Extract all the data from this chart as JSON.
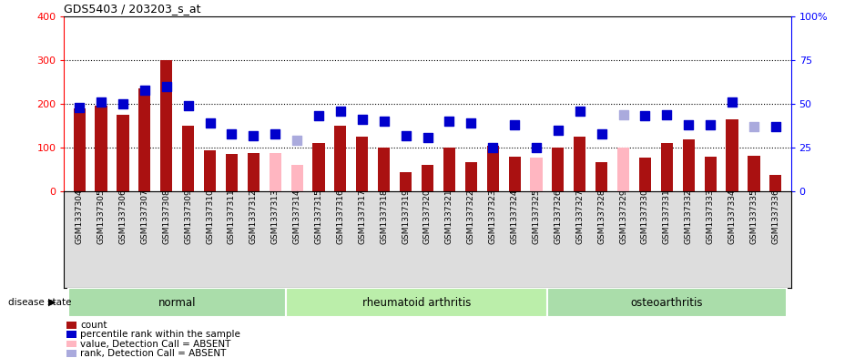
{
  "title": "GDS5403 / 203203_s_at",
  "samples": [
    "GSM1337304",
    "GSM1337305",
    "GSM1337306",
    "GSM1337307",
    "GSM1337308",
    "GSM1337309",
    "GSM1337310",
    "GSM1337311",
    "GSM1337312",
    "GSM1337313",
    "GSM1337314",
    "GSM1337315",
    "GSM1337316",
    "GSM1337317",
    "GSM1337318",
    "GSM1337319",
    "GSM1337320",
    "GSM1337321",
    "GSM1337322",
    "GSM1337323",
    "GSM1337324",
    "GSM1337325",
    "GSM1337326",
    "GSM1337327",
    "GSM1337328",
    "GSM1337329",
    "GSM1337330",
    "GSM1337331",
    "GSM1337332",
    "GSM1337333",
    "GSM1337334",
    "GSM1337335",
    "GSM1337336"
  ],
  "count_values": [
    190,
    195,
    175,
    235,
    300,
    150,
    95,
    85,
    88,
    88,
    60,
    110,
    150,
    125,
    100,
    45,
    60,
    100,
    68,
    105,
    80,
    78,
    100,
    125,
    68,
    100,
    78,
    110,
    118,
    80,
    165,
    82,
    38
  ],
  "count_absent": [
    false,
    false,
    false,
    false,
    false,
    false,
    false,
    false,
    false,
    true,
    true,
    false,
    false,
    false,
    false,
    false,
    false,
    false,
    false,
    false,
    false,
    true,
    false,
    false,
    false,
    true,
    false,
    false,
    false,
    false,
    false,
    false,
    false
  ],
  "percentile_values": [
    48,
    51,
    50,
    58,
    60,
    49,
    39,
    33,
    32,
    33,
    29,
    43,
    46,
    41,
    40,
    32,
    31,
    40,
    39,
    25,
    38,
    25,
    35,
    46,
    33,
    44,
    43,
    44,
    38,
    38,
    51,
    37,
    37
  ],
  "percentile_absent": [
    false,
    false,
    false,
    false,
    false,
    false,
    false,
    false,
    false,
    false,
    true,
    false,
    false,
    false,
    false,
    false,
    false,
    false,
    false,
    false,
    false,
    false,
    false,
    false,
    false,
    true,
    false,
    false,
    false,
    false,
    false,
    true,
    false
  ],
  "groups": [
    {
      "label": "normal",
      "start": 0,
      "end": 10
    },
    {
      "label": "rheumatoid arthritis",
      "start": 10,
      "end": 22
    },
    {
      "label": "osteoarthritis",
      "start": 22,
      "end": 33
    }
  ],
  "group_colors": [
    "#aaddaa",
    "#bbeeaa",
    "#aaddaa"
  ],
  "left_ylim": [
    0,
    400
  ],
  "right_ylim": [
    0,
    100
  ],
  "left_yticks": [
    0,
    100,
    200,
    300,
    400
  ],
  "right_yticks": [
    0,
    25,
    50,
    75,
    100
  ],
  "right_yticklabels": [
    "0",
    "25",
    "50",
    "75",
    "100%"
  ],
  "bar_color_present": "#aa1111",
  "bar_color_absent": "#ffb6c1",
  "dot_color_present": "#0000cc",
  "dot_color_absent": "#aaaadd",
  "bg_color": "#ffffff",
  "xlabels_bg": "#dddddd",
  "bar_width": 0.55,
  "dot_size": 55
}
